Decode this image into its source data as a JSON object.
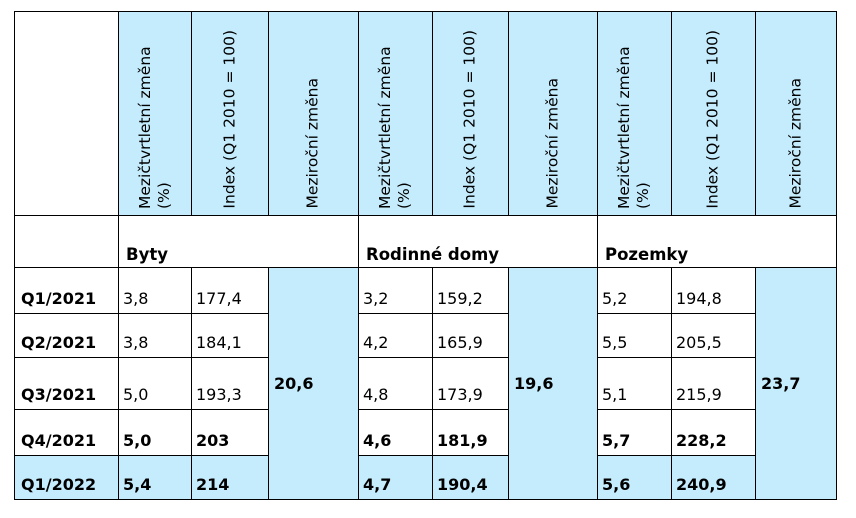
{
  "headers": {
    "mezictvrtletni": "Mezičtvrtletní změna (%)",
    "index": "Index (Q1 2010 = 100)",
    "mezirocni": "Meziroční změna"
  },
  "groups": [
    "Byty",
    "Rodinné domy",
    "Pozemky"
  ],
  "rows": [
    {
      "label": "Q1/2021",
      "b_q": "3,8",
      "b_i": "177,4",
      "r_q": "3,2",
      "r_i": "159,2",
      "p_q": "5,2",
      "p_i": "194,8"
    },
    {
      "label": "Q2/2021",
      "b_q": "3,8",
      "b_i": "184,1",
      "r_q": "4,2",
      "r_i": "165,9",
      "p_q": "5,5",
      "p_i": "205,5"
    },
    {
      "label": "Q3/2021",
      "b_q": "5,0",
      "b_i": "193,3",
      "r_q": "4,8",
      "r_i": "173,9",
      "p_q": "5,1",
      "p_i": "215,9"
    },
    {
      "label": "Q4/2021",
      "b_q": "5,0",
      "b_i": "203",
      "r_q": "4,6",
      "r_i": "181,9",
      "p_q": "5,7",
      "p_i": "228,2"
    },
    {
      "label": "Q1/2022",
      "b_q": "5,4",
      "b_i": "214",
      "r_q": "4,7",
      "r_i": "190,4",
      "p_q": "5,6",
      "p_i": "240,9"
    }
  ],
  "yearly": {
    "byty": "20,6",
    "rodinne_domy": "19,6",
    "pozemky": "23,7"
  },
  "colors": {
    "header_fill": "#c5ecfd",
    "border": "#000000"
  }
}
